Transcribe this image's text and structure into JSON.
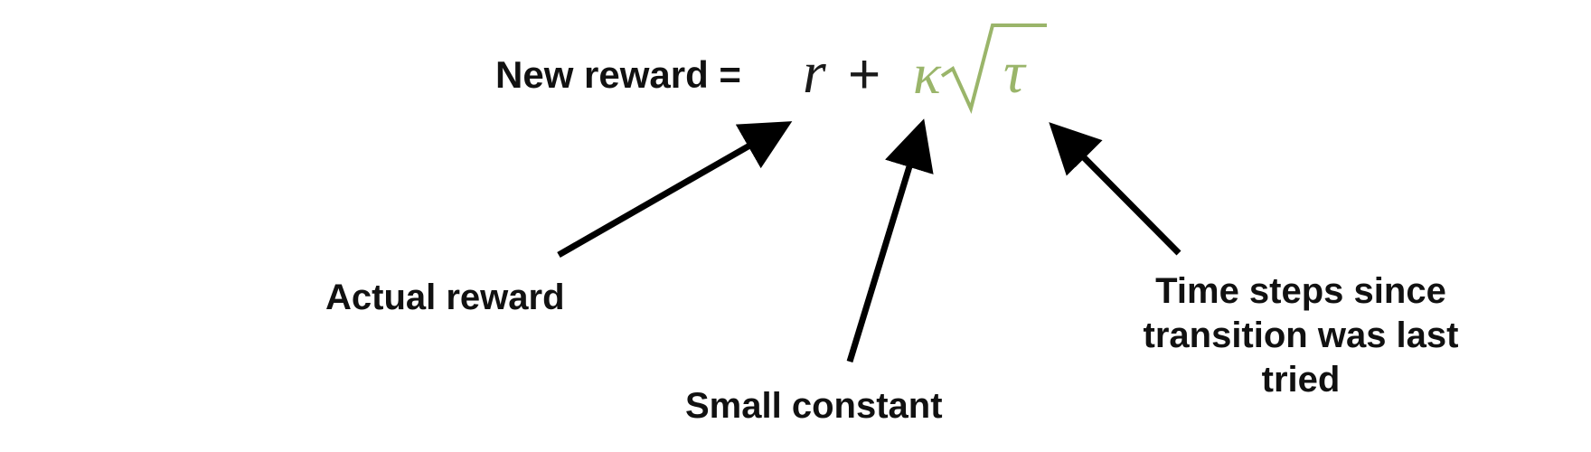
{
  "formula": {
    "label": "New reward =",
    "r": "r",
    "plus": "+",
    "kappa": "κ",
    "tau": "τ"
  },
  "annotations": {
    "actual_reward": "Actual reward",
    "small_constant": "Small constant",
    "time_steps": "Time steps since transition was last tried"
  },
  "colors": {
    "text": "#111111",
    "accent": "#9ab56a",
    "arrow": "#000000",
    "background": "#ffffff"
  }
}
